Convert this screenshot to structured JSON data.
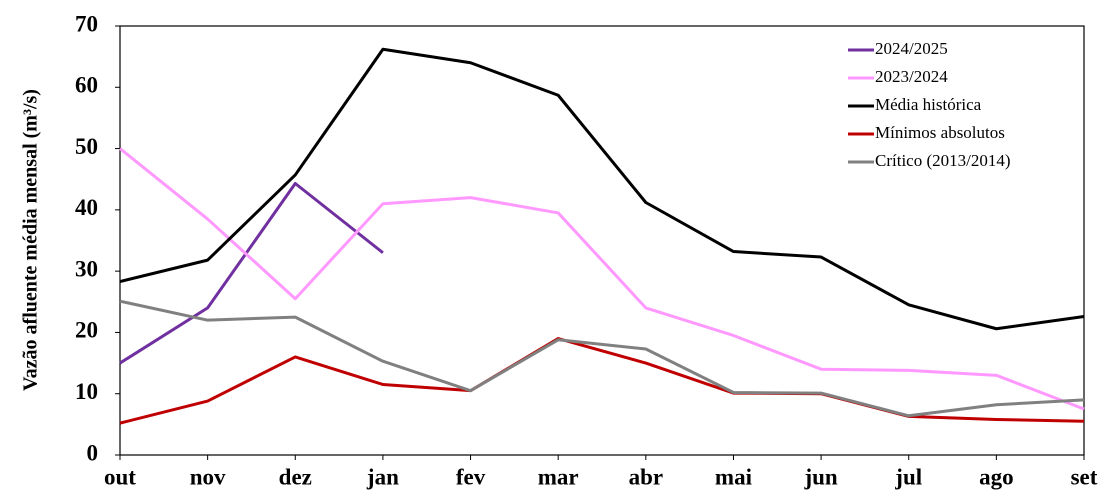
{
  "chart_data": {
    "type": "line",
    "y_label": "Vazão afluente média mensal (m³/s)",
    "categories": [
      "out",
      "nov",
      "dez",
      "jan",
      "fev",
      "mar",
      "abr",
      "mai",
      "jun",
      "jul",
      "ago",
      "set"
    ],
    "ylim": [
      0,
      70
    ],
    "yticks": [
      0,
      10,
      20,
      30,
      40,
      50,
      60,
      70
    ],
    "grid": false,
    "legend": "top-right",
    "series": [
      {
        "name": "2024/2025",
        "color": "#7030a0",
        "values": [
          15,
          24,
          44.3,
          33,
          null,
          null,
          null,
          null,
          null,
          null,
          null,
          null
        ]
      },
      {
        "name": "2023/2024",
        "color": "#ff99ff",
        "values": [
          50,
          38.5,
          25.5,
          41,
          42,
          39.5,
          24,
          19.5,
          14,
          13.8,
          13,
          7.5
        ]
      },
      {
        "name": "Média histórica",
        "color": "#000000",
        "values": [
          28.3,
          31.8,
          45.7,
          66.2,
          64,
          58.7,
          41.2,
          33.2,
          32.3,
          24.5,
          20.6,
          22.6
        ]
      },
      {
        "name": "Mínimos absolutos",
        "color": "#c00000",
        "values": [
          5.2,
          8.8,
          16,
          11.5,
          10.5,
          19,
          15,
          10.1,
          10,
          6.3,
          5.8,
          5.5
        ]
      },
      {
        "name": "Crítico (2013/2014)",
        "color": "#808080",
        "values": [
          25.1,
          22,
          22.5,
          15.3,
          10.5,
          18.8,
          17.3,
          10.2,
          10.1,
          6.4,
          8.2,
          9
        ]
      }
    ]
  }
}
